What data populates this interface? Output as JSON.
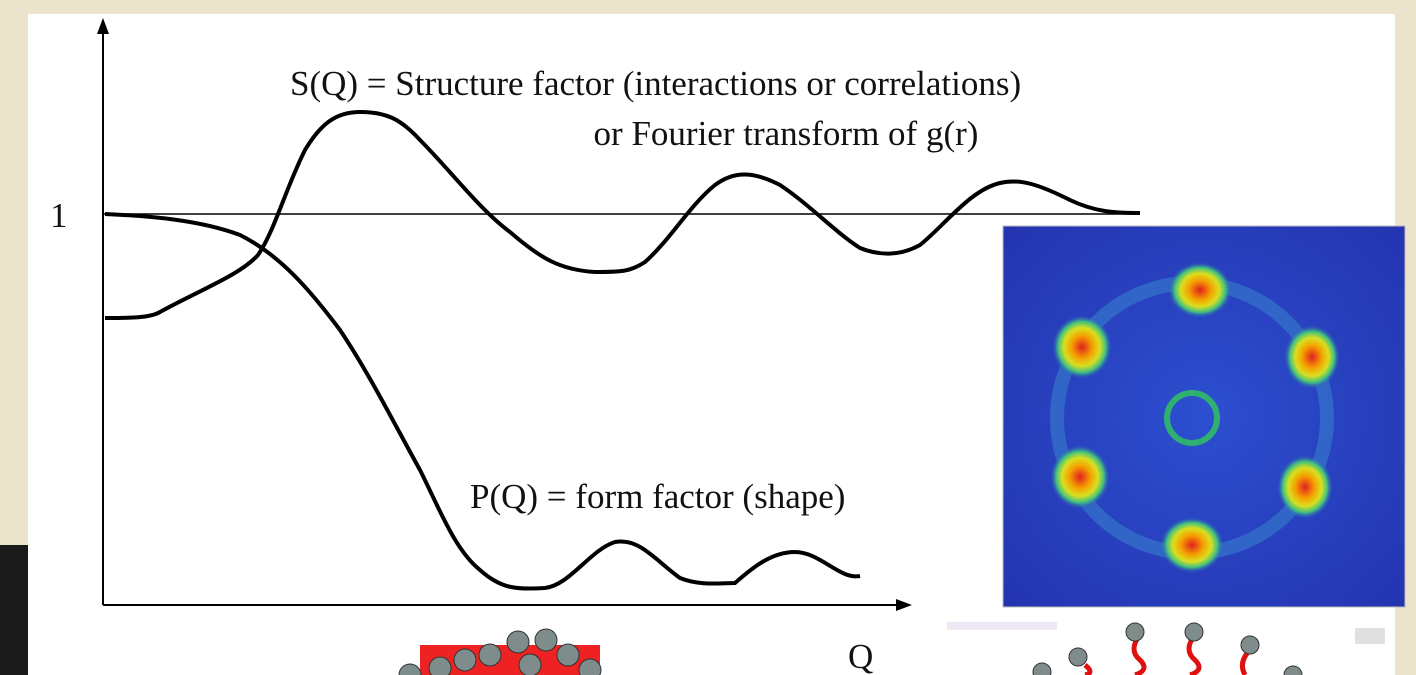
{
  "labels": {
    "s_q_line1": "S(Q) = Structure factor (interactions or correlations)",
    "s_q_line2": "or Fourier transform of g(r)",
    "one": "1",
    "p_q": "P(Q) = form factor (shape)",
    "q_axis": "Q"
  }
}
